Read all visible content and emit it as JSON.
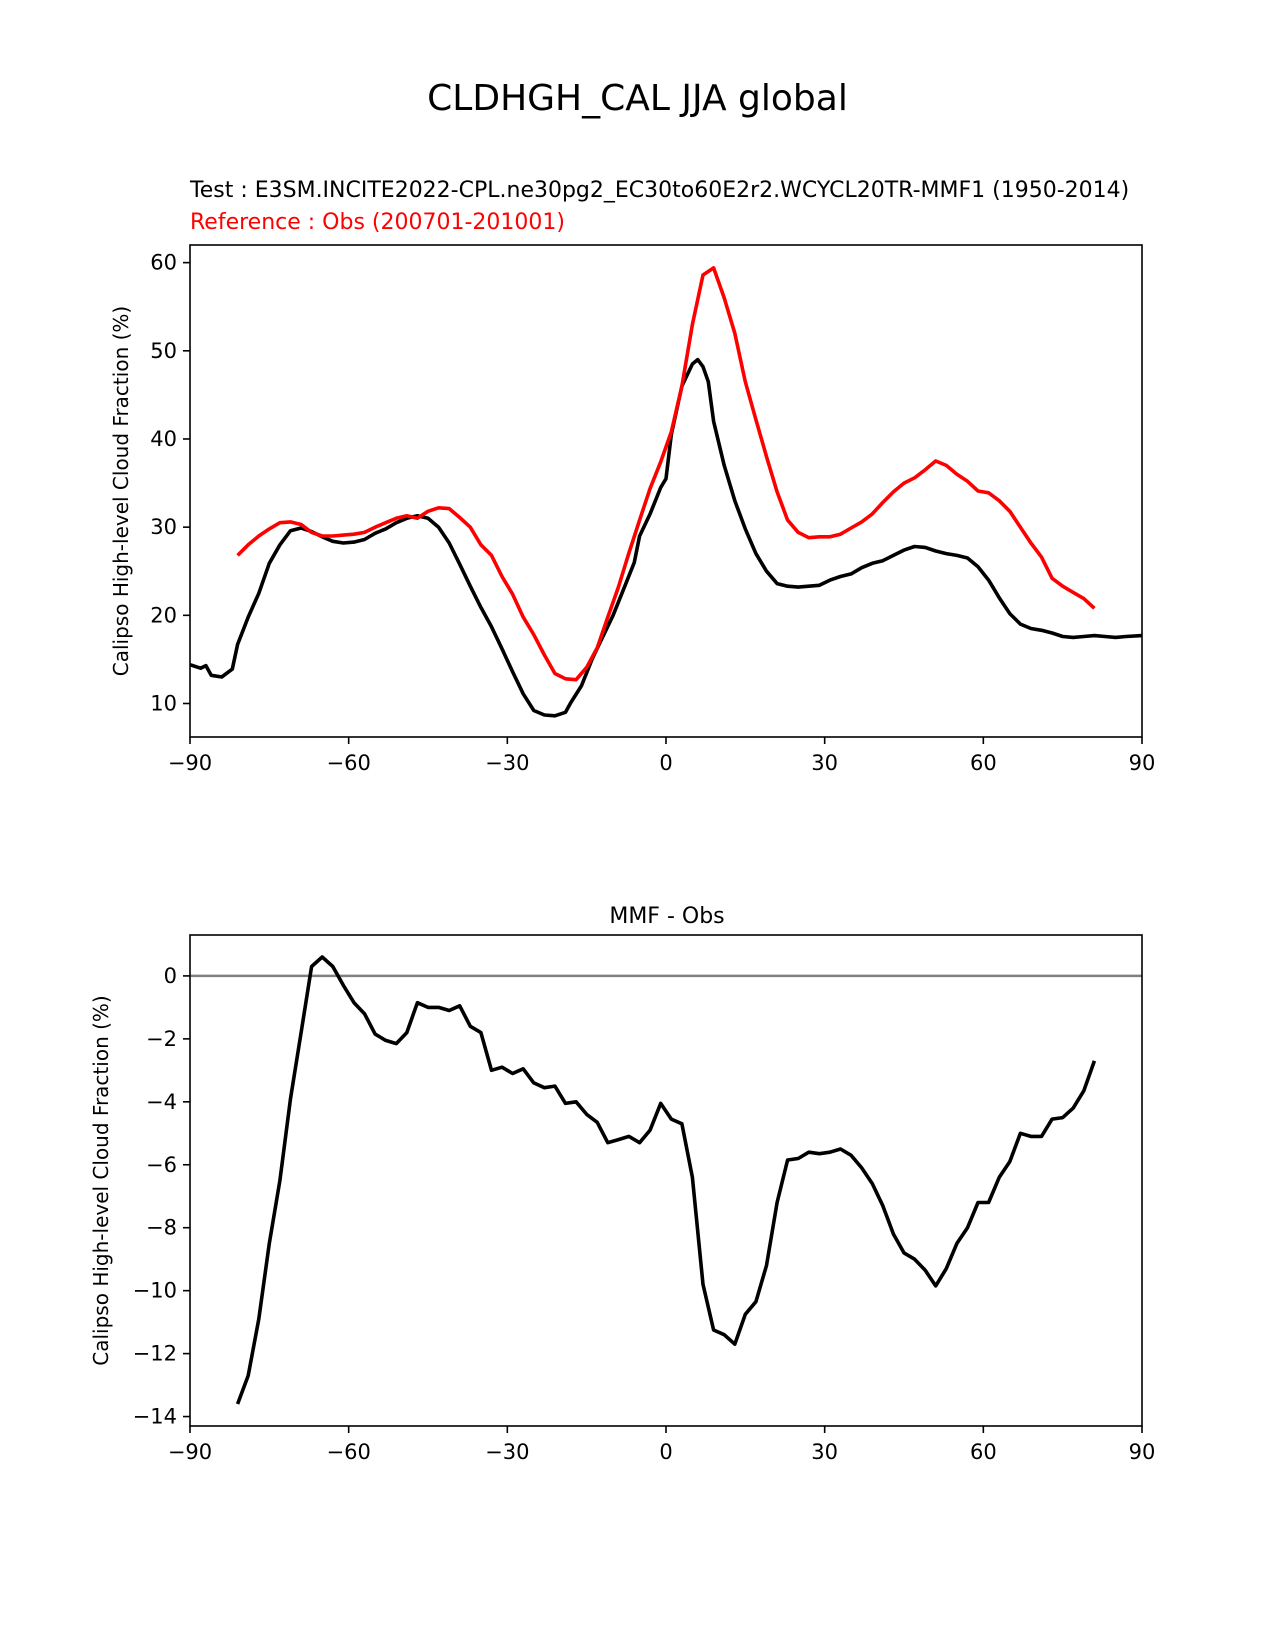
{
  "figure_title": "CLDHGH_CAL JJA global",
  "colors": {
    "test": "#000000",
    "reference": "#ff0000",
    "zero_line": "#808080",
    "axes": "#000000"
  },
  "chart_data": [
    {
      "type": "line",
      "panel": "top",
      "title_test": "Test : E3SM.INCITE2022-CPL.ne30pg2_EC30to60E2r2.WCYCL20TR-MMF1 (1950-2014)",
      "title_reference": "Reference : Obs (200701-201001)",
      "xlabel": "",
      "ylabel": "Calipso High-level Cloud Fraction (%)",
      "xlim": [
        -90,
        90
      ],
      "ylim": [
        6.2,
        62.0
      ],
      "xticks": [
        -90,
        -60,
        -30,
        0,
        30,
        60,
        90
      ],
      "xtick_labels": [
        "−90",
        "−60",
        "−30",
        "0",
        "30",
        "60",
        "90"
      ],
      "yticks": [
        10,
        20,
        30,
        40,
        50,
        60
      ],
      "ytick_labels": [
        "10",
        "20",
        "30",
        "40",
        "50",
        "60"
      ],
      "series": [
        {
          "name": "Test",
          "color": "#000000",
          "x": [
            -90,
            -88,
            -87,
            -86,
            -84,
            -82,
            -81,
            -79,
            -77,
            -75,
            -73,
            -71,
            -69,
            -67,
            -65,
            -63,
            -61,
            -59,
            -57,
            -55,
            -53,
            -51,
            -49,
            -47,
            -45,
            -43,
            -41,
            -39,
            -37,
            -35,
            -33,
            -31,
            -29,
            -27,
            -25,
            -23,
            -21,
            -19,
            -18,
            -16,
            -14,
            -12,
            -10,
            -8,
            -6,
            -5,
            -3,
            -1,
            0,
            1,
            3,
            5,
            6,
            7,
            8,
            9,
            11,
            13,
            15,
            17,
            19,
            21,
            23,
            25,
            27,
            29,
            31,
            33,
            35,
            37,
            39,
            41,
            43,
            45,
            47,
            49,
            51,
            53,
            55,
            57,
            59,
            61,
            63,
            65,
            67,
            69,
            71,
            73,
            75,
            77,
            79,
            81,
            83,
            85,
            87,
            90
          ],
          "y": [
            14.4,
            14.0,
            14.3,
            13.2,
            13.0,
            13.9,
            16.7,
            19.8,
            22.5,
            25.9,
            28.0,
            29.6,
            29.9,
            29.5,
            28.9,
            28.4,
            28.2,
            28.3,
            28.6,
            29.3,
            29.8,
            30.5,
            31.0,
            31.3,
            31.0,
            30.0,
            28.2,
            25.8,
            23.3,
            20.9,
            18.7,
            16.2,
            13.6,
            11.1,
            9.2,
            8.7,
            8.6,
            9.0,
            10.1,
            12.0,
            15.0,
            17.5,
            20.0,
            23.0,
            26.0,
            29.0,
            31.5,
            34.5,
            35.5,
            40.5,
            46.0,
            48.5,
            49.0,
            48.2,
            46.5,
            42.0,
            37.0,
            33.0,
            29.8,
            27.0,
            25.0,
            23.6,
            23.3,
            23.2,
            23.3,
            23.4,
            24.0,
            24.4,
            24.7,
            25.4,
            25.9,
            26.2,
            26.8,
            27.4,
            27.8,
            27.7,
            27.3,
            27.0,
            26.8,
            26.5,
            25.5,
            24.0,
            22.0,
            20.2,
            19.0,
            18.5,
            18.3,
            18.0,
            17.6,
            17.5,
            17.6,
            17.7,
            17.6,
            17.5,
            17.6,
            17.7
          ],
          "y_note": "approximate values read from chart"
        },
        {
          "name": "Reference",
          "color": "#ff0000",
          "x": [
            -81,
            -79,
            -77,
            -75,
            -73,
            -71,
            -69,
            -67,
            -65,
            -63,
            -61,
            -59,
            -57,
            -55,
            -53,
            -51,
            -49,
            -47,
            -45,
            -43,
            -41,
            -39,
            -37,
            -35,
            -33,
            -31,
            -29,
            -27,
            -25,
            -23,
            -21,
            -19,
            -17,
            -15,
            -13,
            -11,
            -9,
            -7,
            -5,
            -3,
            -1,
            1,
            3,
            5,
            7,
            9,
            11,
            13,
            15,
            17,
            19,
            21,
            23,
            25,
            27,
            29,
            31,
            33,
            35,
            37,
            39,
            41,
            43,
            45,
            47,
            49,
            51,
            53,
            55,
            57,
            59,
            61,
            63,
            65,
            67,
            69,
            71,
            73,
            75,
            77,
            79,
            81
          ],
          "y": [
            26.8,
            28.0,
            29.0,
            29.8,
            30.5,
            30.6,
            30.3,
            29.4,
            29.0,
            29.0,
            29.1,
            29.2,
            29.4,
            30.0,
            30.5,
            31.0,
            31.3,
            31.0,
            31.8,
            32.2,
            32.1,
            31.1,
            30.0,
            28.0,
            26.8,
            24.4,
            22.4,
            19.8,
            17.8,
            15.5,
            13.4,
            12.8,
            12.7,
            14.1,
            16.3,
            19.8,
            23.2,
            27.1,
            30.8,
            34.4,
            37.4,
            40.8,
            46.0,
            53.0,
            58.6,
            59.4,
            56.0,
            52.0,
            46.5,
            42.2,
            38.0,
            34.0,
            30.8,
            29.4,
            28.8,
            28.9,
            28.9,
            29.2,
            29.9,
            30.6,
            31.5,
            32.8,
            34.0,
            35.0,
            35.6,
            36.5,
            37.5,
            37.0,
            36.0,
            35.2,
            34.1,
            33.9,
            33.0,
            31.8,
            30.0,
            28.2,
            26.6,
            24.2,
            23.3,
            22.6,
            21.9,
            20.8
          ],
          "y_note": "approximate values read from chart"
        }
      ]
    },
    {
      "type": "line",
      "panel": "bottom",
      "title": "MMF - Obs",
      "xlabel": "",
      "ylabel": "Calipso High-level Cloud Fraction (%)",
      "xlim": [
        -90,
        90
      ],
      "ylim": [
        -14.3,
        1.3
      ],
      "xticks": [
        -90,
        -60,
        -30,
        0,
        30,
        60,
        90
      ],
      "xtick_labels": [
        "−90",
        "−60",
        "−30",
        "0",
        "30",
        "60",
        "90"
      ],
      "yticks": [
        0,
        -2,
        -4,
        -6,
        -8,
        -10,
        -12,
        -14
      ],
      "ytick_labels": [
        "0",
        "−2",
        "−4",
        "−6",
        "−8",
        "−10",
        "−12",
        "−14"
      ],
      "zero_line": 0,
      "series": [
        {
          "name": "MMF - Obs",
          "color": "#000000",
          "x": [
            -81,
            -79,
            -77,
            -75,
            -73,
            -71,
            -69,
            -67,
            -65,
            -63,
            -61,
            -59,
            -57,
            -55,
            -53,
            -51,
            -49,
            -47,
            -45,
            -43,
            -41,
            -39,
            -37,
            -35,
            -33,
            -31,
            -29,
            -27,
            -25,
            -23,
            -21,
            -19,
            -17,
            -15,
            -13,
            -11,
            -9,
            -7,
            -5,
            -3,
            -1,
            1,
            3,
            5,
            7,
            9,
            11,
            13,
            15,
            17,
            19,
            21,
            23,
            25,
            27,
            29,
            31,
            33,
            35,
            37,
            39,
            41,
            43,
            45,
            47,
            49,
            51,
            53,
            55,
            57,
            59,
            61,
            63,
            65,
            67,
            69,
            71,
            73,
            75,
            77,
            79,
            81
          ],
          "y": [
            -13.6,
            -12.7,
            -10.9,
            -8.5,
            -6.5,
            -3.9,
            -1.8,
            0.3,
            0.6,
            0.3,
            -0.3,
            -0.85,
            -1.2,
            -1.85,
            -2.05,
            -2.15,
            -1.8,
            -0.85,
            -1.0,
            -1.0,
            -1.1,
            -0.95,
            -1.6,
            -1.8,
            -3.0,
            -2.9,
            -3.1,
            -2.95,
            -3.4,
            -3.55,
            -3.5,
            -4.05,
            -4.0,
            -4.4,
            -4.65,
            -5.3,
            -5.2,
            -5.1,
            -5.3,
            -4.9,
            -4.05,
            -4.55,
            -4.7,
            -6.4,
            -9.8,
            -11.25,
            -11.4,
            -11.7,
            -10.75,
            -10.35,
            -9.2,
            -7.2,
            -5.85,
            -5.8,
            -5.6,
            -5.65,
            -5.6,
            -5.5,
            -5.7,
            -6.1,
            -6.6,
            -7.3,
            -8.2,
            -8.8,
            -9.0,
            -9.35,
            -9.85,
            -9.3,
            -8.5,
            -8.0,
            -7.2,
            -7.2,
            -6.4,
            -5.9,
            -5.0,
            -5.1,
            -5.1,
            -4.55,
            -4.5,
            -4.2,
            -3.65,
            -2.7
          ],
          "y_note": "approximate values read from chart"
        }
      ]
    }
  ]
}
